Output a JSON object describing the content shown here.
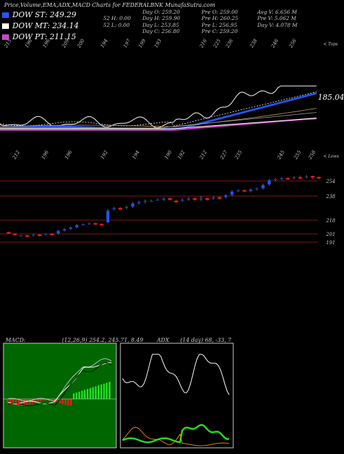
{
  "title": "Price,Volume,EMA,ADX,MACD Charts for FEDERALBNK MunafaSutra.com",
  "legend": [
    {
      "label": "DOW ST: 249.29",
      "color": "#2255ff"
    },
    {
      "label": "DOW MT: 234.14",
      "color": "#ffffff"
    },
    {
      "label": "DOW PT: 211.15",
      "color": "#cc44cc"
    }
  ],
  "stats": {
    "c1": [
      "",
      "52 H: 0.00",
      "52 L: 0.00"
    ],
    "c2": [
      "Day O: 259.20",
      "Day H: 259.90",
      "Day L: 253.85",
      "Day C: 256.80"
    ],
    "c3": [
      "Pre O: 259.00",
      "Pre H: 260.25",
      "Pre L: 256.95",
      "Pre C: 259.20"
    ],
    "c4": [
      "Avg V: 6.656 M",
      "Pre V: 5.062 M",
      "Day V: 4.078 M"
    ]
  },
  "top_tag": "< Tops",
  "low_tag": "< Lows",
  "ema_label": "185.04",
  "top_labels": [
    "215",
    "196",
    "196",
    "209",
    "200",
    "194",
    "197",
    "199",
    "193",
    "216",
    "225",
    "236",
    "238",
    "246",
    "256"
  ],
  "low_labels": [
    "212",
    "196",
    "196",
    "192",
    "194",
    "190",
    "192",
    "212",
    "227",
    "235",
    "245",
    "255",
    "258"
  ],
  "price_levels": [
    "254",
    "238",
    "218",
    "201",
    "191"
  ],
  "macd_panel": {
    "title": "MACD:",
    "params": "(12,26,9) 254.2, 245.71, 8.49"
  },
  "adx_panel": {
    "title": "ADX",
    "params": "(14 day) 68, -33, 7"
  },
  "colors": {
    "up": "#2255ee",
    "down": "#ee2222",
    "macd_green": "#22dd22",
    "macd_red": "#dd2222",
    "grid": "#aa2222",
    "adx_pos": "#22dd22",
    "adx_neg": "#dd8800"
  },
  "chart_data": {
    "type": "candlestick",
    "horizontal_levels": [
      254,
      238,
      218,
      201,
      191
    ],
    "candles": [
      {
        "o": 203,
        "c": 202,
        "h": 204,
        "l": 201
      },
      {
        "o": 201,
        "c": 200,
        "h": 202,
        "l": 199
      },
      {
        "o": 199,
        "c": 199,
        "h": 200,
        "l": 198
      },
      {
        "o": 199,
        "c": 198,
        "h": 200,
        "l": 197
      },
      {
        "o": 199,
        "c": 200,
        "h": 201,
        "l": 198
      },
      {
        "o": 200,
        "c": 199,
        "h": 201,
        "l": 198
      },
      {
        "o": 200,
        "c": 201,
        "h": 202,
        "l": 199
      },
      {
        "o": 201,
        "c": 200,
        "h": 202,
        "l": 199
      },
      {
        "o": 201,
        "c": 205,
        "h": 206,
        "l": 200
      },
      {
        "o": 205,
        "c": 207,
        "h": 208,
        "l": 204
      },
      {
        "o": 207,
        "c": 209,
        "h": 210,
        "l": 206
      },
      {
        "o": 209,
        "c": 212,
        "h": 213,
        "l": 208
      },
      {
        "o": 212,
        "c": 213,
        "h": 214,
        "l": 211
      },
      {
        "o": 213,
        "c": 214,
        "h": 215,
        "l": 212
      },
      {
        "o": 214,
        "c": 213,
        "h": 215,
        "l": 212
      },
      {
        "o": 213,
        "c": 212,
        "h": 214,
        "l": 211
      },
      {
        "o": 215,
        "c": 226,
        "h": 227,
        "l": 214
      },
      {
        "o": 227,
        "c": 228,
        "h": 229,
        "l": 226
      },
      {
        "o": 228,
        "c": 227,
        "h": 229,
        "l": 226
      },
      {
        "o": 228,
        "c": 229,
        "h": 230,
        "l": 227
      },
      {
        "o": 229,
        "c": 232,
        "h": 233,
        "l": 228
      },
      {
        "o": 232,
        "c": 233,
        "h": 234,
        "l": 231
      },
      {
        "o": 233,
        "c": 234,
        "h": 235,
        "l": 232
      },
      {
        "o": 234,
        "c": 234,
        "h": 235,
        "l": 233
      },
      {
        "o": 235,
        "c": 235,
        "h": 236,
        "l": 234
      },
      {
        "o": 235,
        "c": 236,
        "h": 237,
        "l": 234
      },
      {
        "o": 236,
        "c": 235,
        "h": 237,
        "l": 234
      },
      {
        "o": 234,
        "c": 233,
        "h": 235,
        "l": 232
      },
      {
        "o": 234,
        "c": 235,
        "h": 236,
        "l": 233
      },
      {
        "o": 235,
        "c": 236,
        "h": 237,
        "l": 234
      },
      {
        "o": 236,
        "c": 235,
        "h": 237,
        "l": 234
      },
      {
        "o": 235,
        "c": 236,
        "h": 238,
        "l": 234
      },
      {
        "o": 236,
        "c": 235,
        "h": 237,
        "l": 234
      },
      {
        "o": 236,
        "c": 237,
        "h": 238,
        "l": 235
      },
      {
        "o": 237,
        "c": 236,
        "h": 238,
        "l": 235
      },
      {
        "o": 237,
        "c": 239,
        "h": 240,
        "l": 236
      },
      {
        "o": 239,
        "c": 243,
        "h": 244,
        "l": 238
      },
      {
        "o": 243,
        "c": 244,
        "h": 245,
        "l": 242
      },
      {
        "o": 244,
        "c": 243,
        "h": 245,
        "l": 242
      },
      {
        "o": 243,
        "c": 245,
        "h": 246,
        "l": 242
      },
      {
        "o": 245,
        "c": 246,
        "h": 247,
        "l": 244
      },
      {
        "o": 246,
        "c": 250,
        "h": 251,
        "l": 245
      },
      {
        "o": 250,
        "c": 255,
        "h": 256,
        "l": 249
      },
      {
        "o": 255,
        "c": 256,
        "h": 257,
        "l": 254
      },
      {
        "o": 256,
        "c": 257,
        "h": 258,
        "l": 255
      },
      {
        "o": 257,
        "c": 256,
        "h": 258,
        "l": 255
      },
      {
        "o": 257,
        "c": 258,
        "h": 259,
        "l": 256
      },
      {
        "o": 258,
        "c": 257,
        "h": 260,
        "l": 256
      },
      {
        "o": 259,
        "c": 259,
        "h": 260,
        "l": 257
      },
      {
        "o": 259,
        "c": 258,
        "h": 260,
        "l": 256
      },
      {
        "o": 258,
        "c": 257,
        "h": 259,
        "l": 256
      }
    ]
  }
}
